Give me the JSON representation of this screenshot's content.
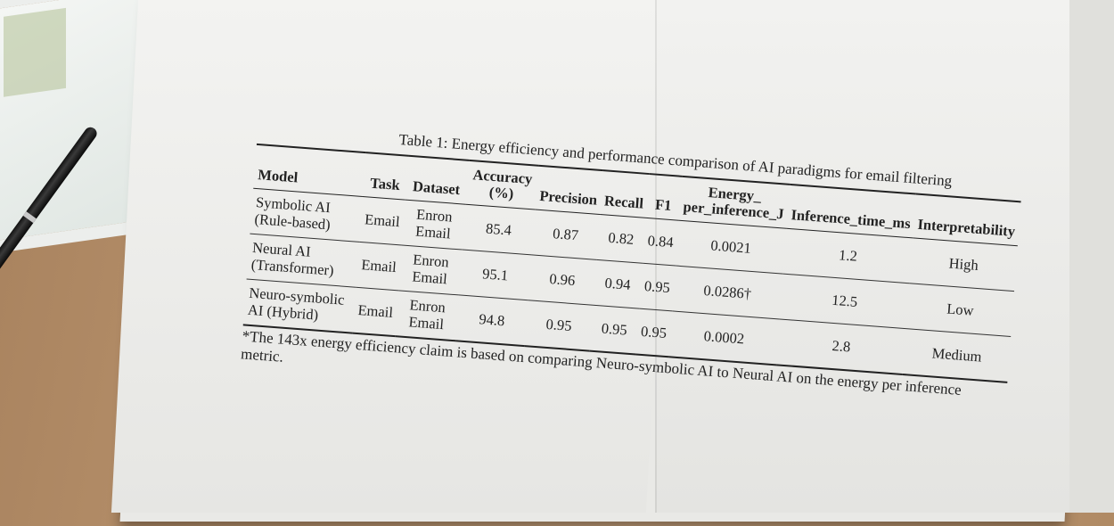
{
  "caption": "Table 1: Energy efficiency and performance comparison of AI paradigms for email filtering",
  "headers": {
    "model": "Model",
    "task": "Task",
    "dataset": "Dataset",
    "accuracy": "Accuracy (%)",
    "precision": "Precision",
    "recall": "Recall",
    "f1": "F1",
    "energy": "Energy_ per_inference_J",
    "time": "Inference_time_ms",
    "interp": "Interpretability"
  },
  "rows": [
    {
      "model": "Symbolic AI (Rule-based)",
      "task": "Email",
      "dataset": "Enron Email",
      "accuracy": "85.4",
      "precision": "0.87",
      "recall": "0.82",
      "f1": "0.84",
      "energy": "0.0021",
      "time": "1.2",
      "interp": "High"
    },
    {
      "model": "Neural AI (Transformer)",
      "task": "Email",
      "dataset": "Enron Email",
      "accuracy": "95.1",
      "precision": "0.96",
      "recall": "0.94",
      "f1": "0.95",
      "energy": "0.0286†",
      "time": "12.5",
      "interp": "Low"
    },
    {
      "model": "Neuro-symbolic AI (Hybrid)",
      "task": "Email",
      "dataset": "Enron Email",
      "accuracy": "94.8",
      "precision": "0.95",
      "recall": "0.95",
      "f1": "0.95",
      "energy": "0.0002",
      "time": "2.8",
      "interp": "Medium"
    }
  ],
  "footnote": "*The 143x energy efficiency claim is based on comparing Neuro-symbolic AI to Neural AI on the energy per inference metric."
}
